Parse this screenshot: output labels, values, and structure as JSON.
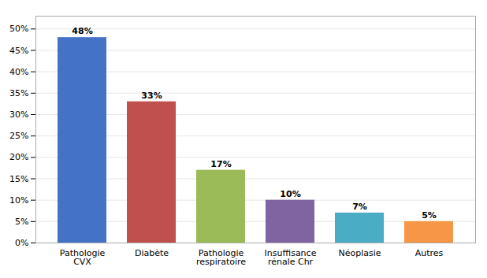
{
  "chart_data": {
    "type": "bar",
    "categories": [
      "Pathologie\nCVX",
      "Diabète",
      "Pathologie\nrespiratoire",
      "Insuffisance\nrénale Chr",
      "Néoplasie",
      "Autres"
    ],
    "values": [
      48,
      33,
      17,
      10,
      7,
      5
    ],
    "value_labels": [
      "48%",
      "33%",
      "17%",
      "10%",
      "7%",
      "5%"
    ],
    "data_labels": true,
    "colors": [
      "#4472C4",
      "#C0504D",
      "#9BBB59",
      "#8064A2",
      "#4BACC6",
      "#F79646"
    ],
    "ylim": [
      0,
      53
    ],
    "yticks": [
      {
        "value": 0,
        "label": "0%"
      },
      {
        "value": 5,
        "label": "5%"
      },
      {
        "value": 10,
        "label": "10%"
      },
      {
        "value": 15,
        "label": "15%"
      },
      {
        "value": 20,
        "label": "20%"
      },
      {
        "value": 25,
        "label": "25%"
      },
      {
        "value": 30,
        "label": "30%"
      },
      {
        "value": 35,
        "label": "35%"
      },
      {
        "value": 40,
        "label": "40%"
      },
      {
        "value": 45,
        "label": "45%"
      },
      {
        "value": 50,
        "label": "50%"
      }
    ],
    "grid": true
  }
}
